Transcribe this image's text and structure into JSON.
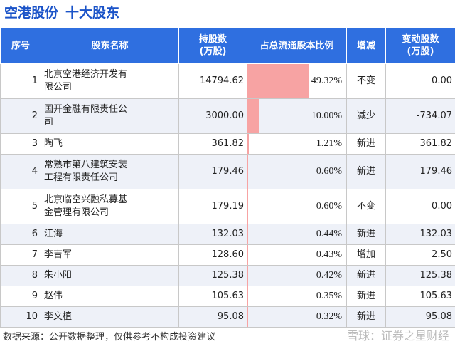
{
  "title": {
    "company": "空港股份",
    "subject": "十大股东"
  },
  "table": {
    "headers": {
      "rank": "序号",
      "name": "股东名称",
      "shares": [
        "持股数",
        "(万股)"
      ],
      "ratio": "占总流通股本比例",
      "change": "增减",
      "delta": [
        "变动股数",
        "(万股)"
      ]
    },
    "rows": [
      {
        "rank": "1",
        "name": [
          "北京空港经济开发有",
          "限公司"
        ],
        "shares": "14794.62",
        "ratio": "49.32%",
        "ratio_value": 49.32,
        "change": "不变",
        "change_type": "flat",
        "delta": "0.00"
      },
      {
        "rank": "2",
        "name": [
          "国开金融有限责任公",
          "司"
        ],
        "shares": "3000.00",
        "ratio": "10.00%",
        "ratio_value": 10.0,
        "change": "减少",
        "change_type": "down",
        "delta": "-734.07"
      },
      {
        "rank": "3",
        "name": [
          "陶飞"
        ],
        "shares": "361.82",
        "ratio": "1.21%",
        "ratio_value": 1.21,
        "change": "新进",
        "change_type": "up",
        "delta": "361.82"
      },
      {
        "rank": "4",
        "name": [
          "常熟市第八建筑安装",
          "工程有限责任公司"
        ],
        "shares": "179.46",
        "ratio": "0.60%",
        "ratio_value": 0.6,
        "change": "新进",
        "change_type": "up",
        "delta": "179.46"
      },
      {
        "rank": "5",
        "name": [
          "北京临空兴融私募基",
          "金管理有限公司"
        ],
        "shares": "179.19",
        "ratio": "0.60%",
        "ratio_value": 0.6,
        "change": "不变",
        "change_type": "flat",
        "delta": "0.00"
      },
      {
        "rank": "6",
        "name": [
          "江海"
        ],
        "shares": "132.03",
        "ratio": "0.44%",
        "ratio_value": 0.44,
        "change": "新进",
        "change_type": "up",
        "delta": "132.03"
      },
      {
        "rank": "7",
        "name": [
          "李吉军"
        ],
        "shares": "128.60",
        "ratio": "0.43%",
        "ratio_value": 0.43,
        "change": "增加",
        "change_type": "up",
        "delta": "2.50"
      },
      {
        "rank": "8",
        "name": [
          "朱小阳"
        ],
        "shares": "125.38",
        "ratio": "0.42%",
        "ratio_value": 0.42,
        "change": "新进",
        "change_type": "up",
        "delta": "125.38"
      },
      {
        "rank": "9",
        "name": [
          "赵伟"
        ],
        "shares": "105.63",
        "ratio": "0.35%",
        "ratio_value": 0.35,
        "change": "新进",
        "change_type": "up",
        "delta": "105.63"
      },
      {
        "rank": "10",
        "name": [
          "李文植"
        ],
        "shares": "95.08",
        "ratio": "0.32%",
        "ratio_value": 0.32,
        "change": "新进",
        "change_type": "up",
        "delta": "95.08"
      }
    ]
  },
  "colors": {
    "header_bg": "#2f6fe0",
    "bar": "#f7a3a3",
    "up": "#e02020",
    "down": "#1f9a3a",
    "title": "#1a53c8"
  },
  "watermark": "证券之星",
  "footer": {
    "source": "数据来源：公开数据整理，仅供参考不构成投资建议",
    "brand": "雪球：证券之星财经"
  }
}
